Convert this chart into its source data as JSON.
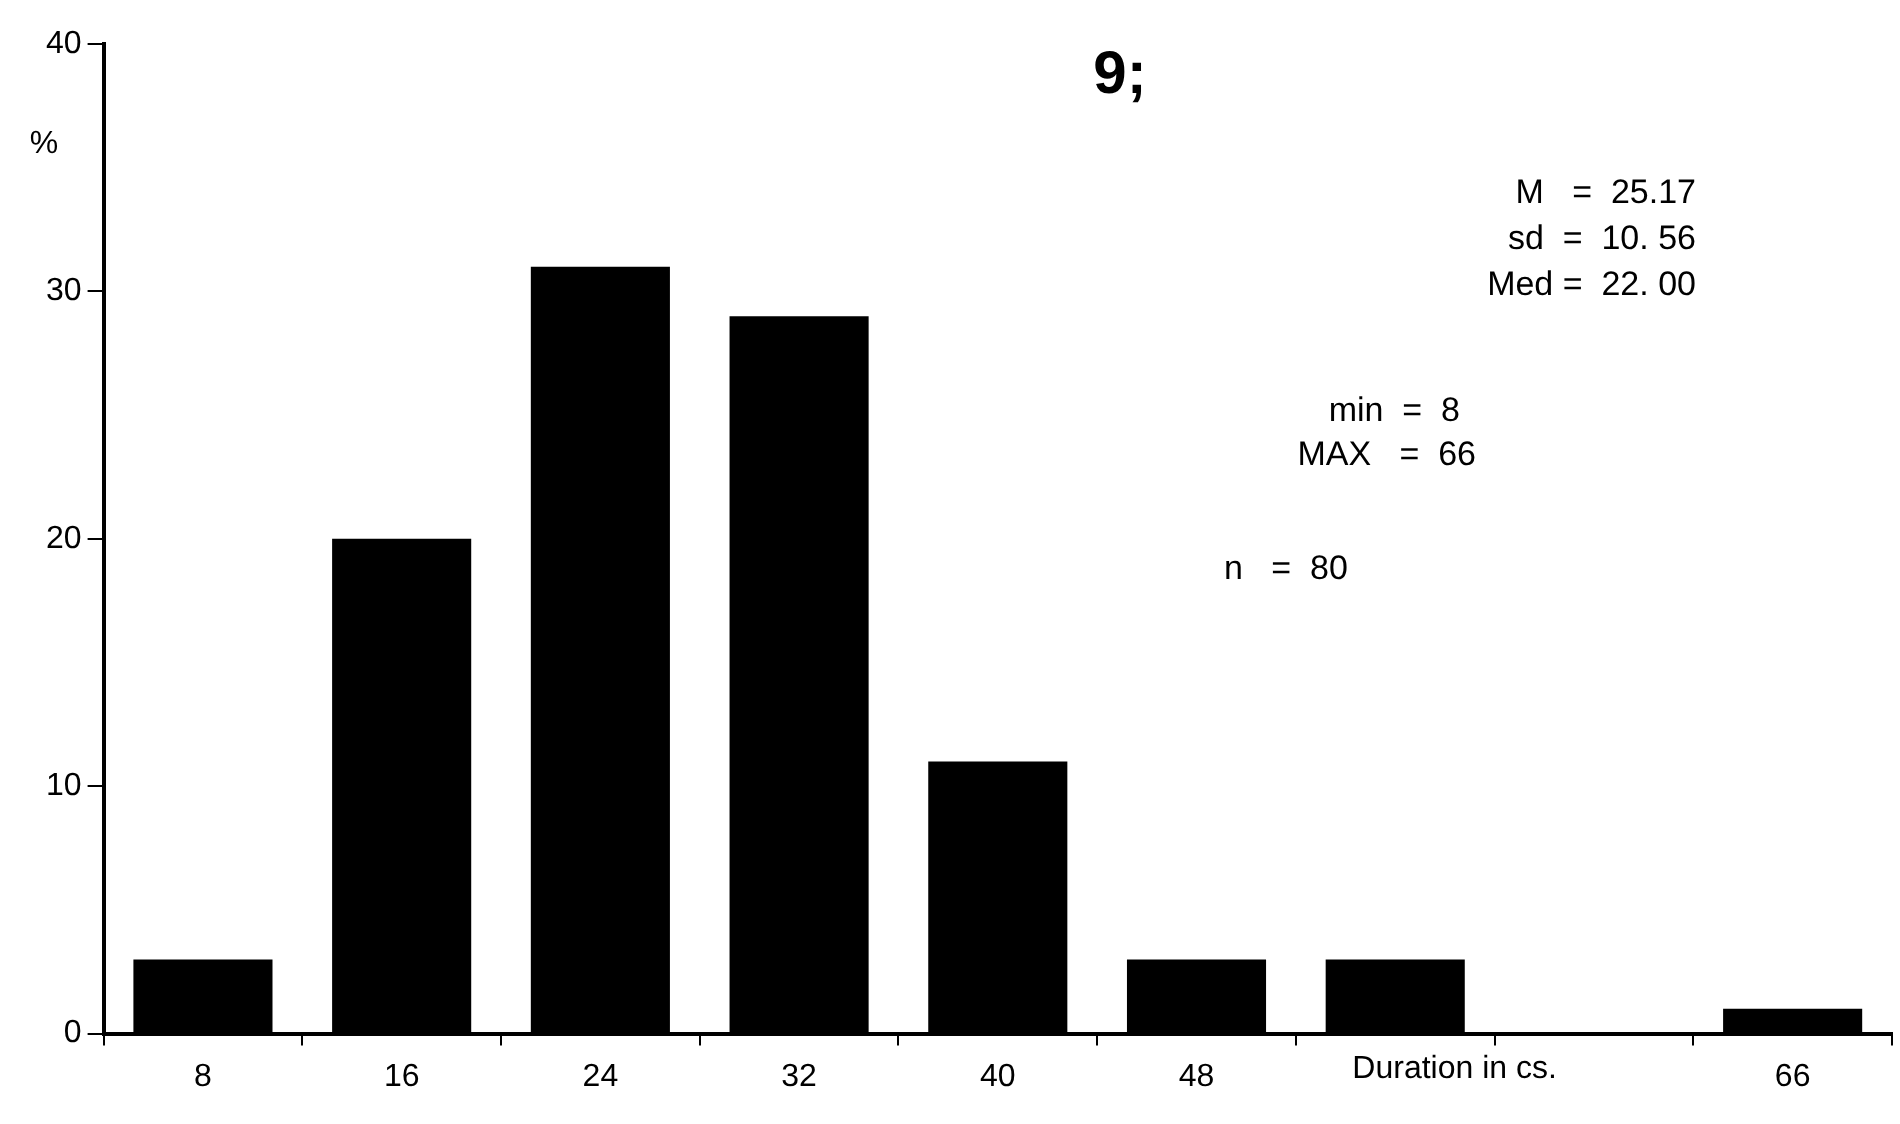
{
  "chart_data": {
    "type": "bar",
    "title": "9;",
    "ylabel": "%",
    "xlabel": "Duration in cs.",
    "categories": [
      "8",
      "16",
      "24",
      "32",
      "40",
      "48",
      null,
      null,
      "66"
    ],
    "values": [
      3,
      20,
      31,
      29,
      11,
      3,
      3,
      0,
      1
    ],
    "color": "#000000",
    "ylim": [
      0,
      40
    ],
    "yticks": [
      0,
      10,
      20,
      30,
      40
    ],
    "annotations": [
      "M   =  25.17",
      "sd  =  10. 56",
      "Med =  22. 00",
      "min  =  8",
      "MAX   =  66",
      "n   =  80"
    ]
  }
}
